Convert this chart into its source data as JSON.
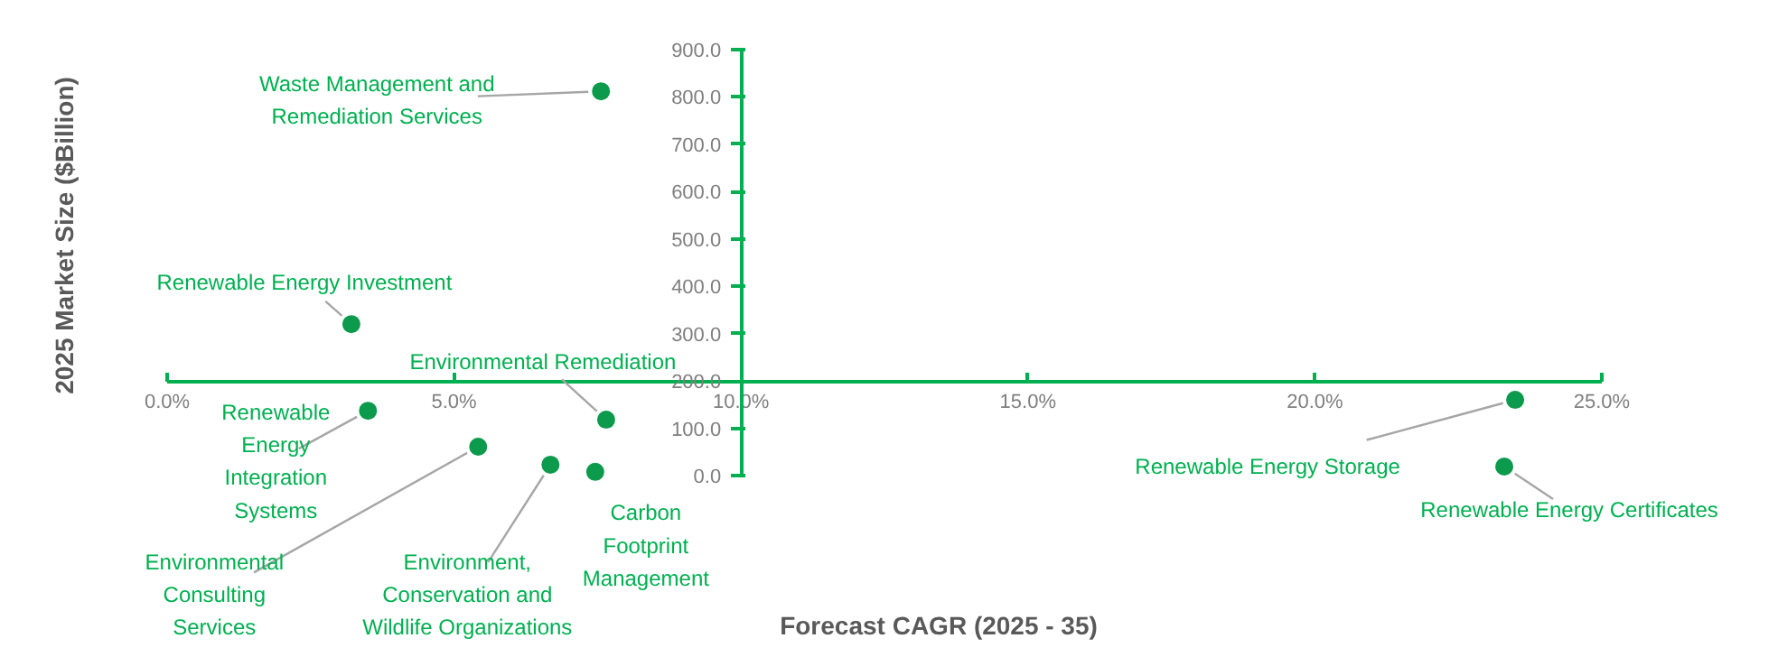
{
  "chart_data": {
    "type": "scatter",
    "xlabel": "Forecast CAGR (2025 - 35)",
    "ylabel": "2025 Market Size ($Billion)",
    "x": [
      7.56,
      3.21,
      3.5,
      7.65,
      5.42,
      6.68,
      7.46,
      23.49,
      23.3
    ],
    "series": [
      {
        "color": "#0c9a4c",
        "values": [
          812,
          320,
          137,
          118,
          61,
          23,
          8,
          160,
          19
        ]
      }
    ],
    "xlim": [
      0,
      25
    ],
    "ylim": [
      0,
      900
    ],
    "xticks": [
      {
        "value": 0,
        "label": "0.0%"
      },
      {
        "value": 5,
        "label": "5.0%"
      },
      {
        "value": 10,
        "label": "10.0%"
      },
      {
        "value": 15,
        "label": "15.0%"
      },
      {
        "value": 20,
        "label": "20.0%"
      },
      {
        "value": 25,
        "label": "25.0%"
      }
    ],
    "yticks": [
      {
        "value": 0,
        "label": "0.0"
      },
      {
        "value": 100,
        "label": "100.0"
      },
      {
        "value": 200,
        "label": "200.0"
      },
      {
        "value": 300,
        "label": "300.0"
      },
      {
        "value": 400,
        "label": "400.0"
      },
      {
        "value": 500,
        "label": "500.0"
      },
      {
        "value": 600,
        "label": "600.0"
      },
      {
        "value": 700,
        "label": "700.0"
      },
      {
        "value": 800,
        "label": "800.0"
      },
      {
        "value": 900,
        "label": "900.0"
      }
    ],
    "annotations": [
      {
        "text": "Waste Management and\nRemediation Services",
        "x": 7.56,
        "y": 812
      },
      {
        "text": "Renewable Energy Investment",
        "x": 3.21,
        "y": 320
      },
      {
        "text": "Renewable\nEnergy\nIntegration\nSystems",
        "x": 3.5,
        "y": 137
      },
      {
        "text": "Environmental Remediation",
        "x": 7.65,
        "y": 118
      },
      {
        "text": "Environmental\nConsulting\nServices",
        "x": 5.42,
        "y": 61
      },
      {
        "text": "Environment,\nConservation and\nWildlife Organizations",
        "x": 6.68,
        "y": 23
      },
      {
        "text": "Carbon\nFootprint\nManagement",
        "x": 7.46,
        "y": 8
      },
      {
        "text": "Renewable Energy Storage",
        "x": 23.49,
        "y": 160
      },
      {
        "text": "Renewable Energy Certificates",
        "x": 23.3,
        "y": 19
      }
    ],
    "grid": false,
    "marker": "circle"
  }
}
